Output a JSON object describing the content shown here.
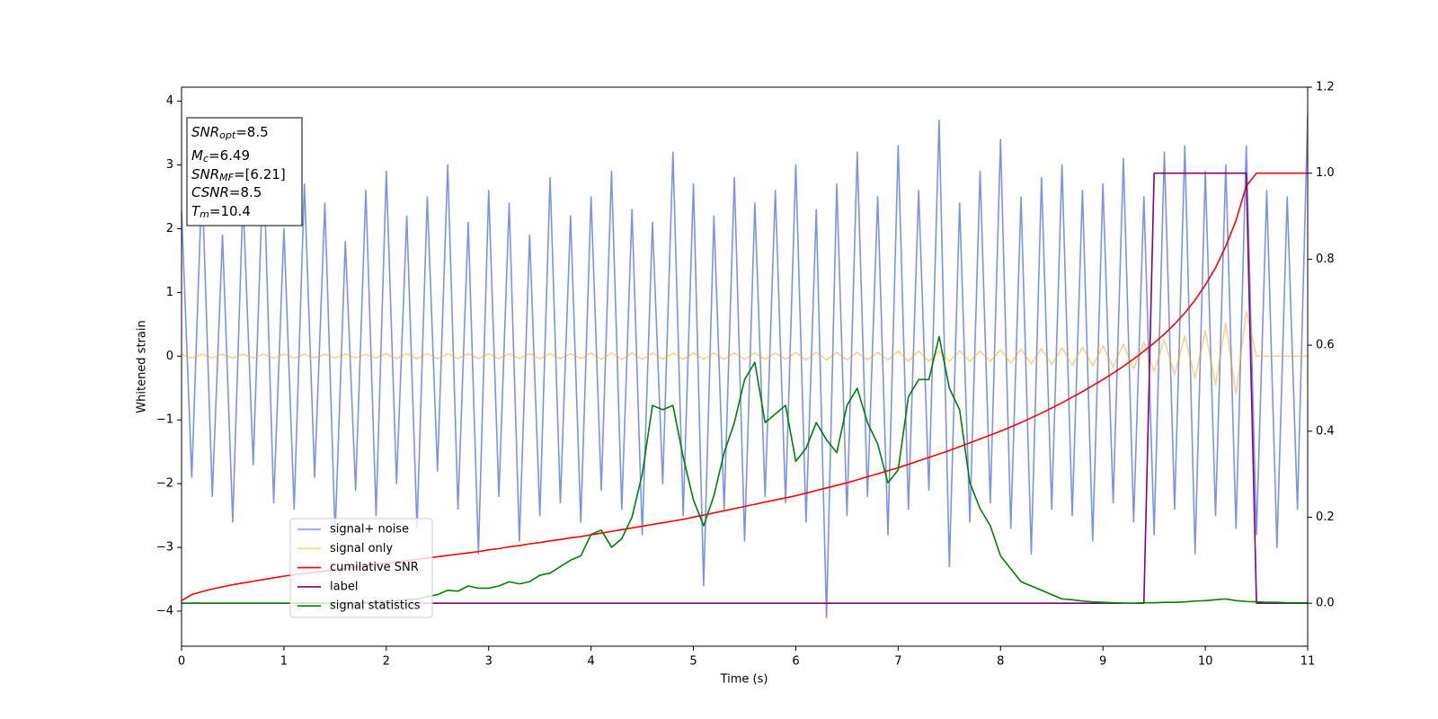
{
  "chart_data": {
    "type": "line",
    "xlabel": "Time (s)",
    "ylabel": "Whitened strain",
    "xlim": [
      0,
      11
    ],
    "ylim": [
      -4.55,
      4.22
    ],
    "y2lim": [
      -0.1,
      1.2
    ],
    "xticks": [
      0,
      1,
      2,
      3,
      4,
      5,
      6,
      7,
      8,
      9,
      10,
      11
    ],
    "yticks": [
      {
        "value": -4,
        "label": "−4"
      },
      {
        "value": -3,
        "label": "−3"
      },
      {
        "value": -2,
        "label": "−2"
      },
      {
        "value": -1,
        "label": "−1"
      },
      0,
      1,
      2,
      3,
      4
    ],
    "y2ticks": [
      {
        "value": 0,
        "label": "0.0"
      },
      0.2,
      0.4,
      0.6,
      0.8,
      {
        "value": 1,
        "label": "1.0"
      },
      1.2
    ],
    "legend": "lower left",
    "annotation": [
      {
        "base": "SNR",
        "sub": "opt",
        "rest": "=8.5"
      },
      {
        "base": "M",
        "sub": "c",
        "rest": "=6.49"
      },
      {
        "base": "SNR",
        "sub": "MF",
        "rest": "=[6.21]"
      },
      {
        "base": "CSNR",
        "rest": "=8.5"
      },
      {
        "base": "T",
        "sub": "m",
        "rest": "=10.4"
      }
    ],
    "x": [
      0,
      0.1,
      0.2,
      0.3,
      0.4,
      0.5,
      0.6,
      0.7,
      0.8,
      0.9,
      1,
      1.1,
      1.2,
      1.3,
      1.4,
      1.5,
      1.6,
      1.7,
      1.8,
      1.9,
      2,
      2.1,
      2.2,
      2.3,
      2.4,
      2.5,
      2.6,
      2.7,
      2.8,
      2.9,
      3,
      3.1,
      3.2,
      3.3,
      3.4,
      3.5,
      3.6,
      3.7,
      3.8,
      3.9,
      4,
      4.1,
      4.2,
      4.3,
      4.4,
      4.5,
      4.6,
      4.7,
      4.8,
      4.9,
      5,
      5.1,
      5.2,
      5.3,
      5.4,
      5.5,
      5.6,
      5.7,
      5.8,
      5.9,
      6,
      6.1,
      6.2,
      6.3,
      6.4,
      6.5,
      6.6,
      6.7,
      6.8,
      6.9,
      7,
      7.1,
      7.2,
      7.3,
      7.4,
      7.5,
      7.6,
      7.7,
      7.8,
      7.9,
      8,
      8.1,
      8.2,
      8.3,
      8.4,
      8.5,
      8.6,
      8.7,
      8.8,
      8.9,
      9,
      9.1,
      9.2,
      9.3,
      9.4,
      9.5,
      9.6,
      9.7,
      9.8,
      9.9,
      10,
      10.1,
      10.2,
      10.3,
      10.4,
      10.5,
      10.6,
      10.7,
      10.8,
      10.9,
      11
    ],
    "series": [
      {
        "name": "signal+ noise",
        "color": "#7a93e8",
        "values": [
          2.3,
          -1.9,
          2.8,
          -2.2,
          1.9,
          -2.6,
          2.5,
          -1.7,
          3.1,
          -2.3,
          2.0,
          -2.4,
          2.7,
          -1.9,
          2.4,
          -2.8,
          1.8,
          -2.1,
          2.6,
          -2.5,
          2.9,
          -2.0,
          2.2,
          -2.7,
          2.5,
          -1.8,
          3.0,
          -2.4,
          2.1,
          -3.1,
          2.6,
          -2.2,
          2.4,
          -2.9,
          1.9,
          -2.5,
          2.8,
          -2.3,
          2.2,
          -2.6,
          2.5,
          -2.1,
          2.9,
          -2.4,
          2.3,
          -2.8,
          2.1,
          -2.0,
          3.2,
          -2.5,
          2.7,
          -3.6,
          2.2,
          -2.4,
          2.8,
          -2.9,
          2.4,
          -2.2,
          2.6,
          -2.3,
          3.0,
          -2.6,
          2.3,
          -4.1,
          2.7,
          -2.5,
          3.2,
          -2.2,
          2.5,
          -2.8,
          3.3,
          -2.4,
          2.6,
          -2.1,
          3.7,
          -3.3,
          2.4,
          -2.6,
          2.9,
          -2.3,
          3.4,
          -2.7,
          2.5,
          -3.1,
          2.8,
          -2.4,
          3.0,
          -2.5,
          2.6,
          -2.9,
          2.7,
          -2.3,
          3.1,
          -2.6,
          2.5,
          -2.8,
          3.2,
          -2.4,
          3.3,
          -3.1,
          2.9,
          -2.5,
          3.0,
          -2.7,
          3.3,
          -2.8,
          2.6,
          -3.0,
          2.5,
          -2.4,
          3.8
        ]
      },
      {
        "name": "signal only",
        "color": "#ffa500",
        "values": [
          0.03,
          -0.03,
          0.03,
          -0.03,
          0.03,
          -0.03,
          0.03,
          -0.03,
          0.03,
          -0.03,
          0.03,
          -0.03,
          0.03,
          -0.03,
          0.03,
          -0.03,
          0.03,
          -0.03,
          0.03,
          -0.03,
          0.04,
          -0.04,
          0.04,
          -0.04,
          0.04,
          -0.04,
          0.04,
          -0.04,
          0.04,
          -0.04,
          0.04,
          -0.04,
          0.04,
          -0.04,
          0.04,
          -0.04,
          0.04,
          -0.04,
          0.04,
          -0.04,
          0.05,
          -0.05,
          0.05,
          -0.05,
          0.05,
          -0.05,
          0.05,
          -0.05,
          0.05,
          -0.05,
          0.05,
          -0.05,
          0.05,
          -0.05,
          0.05,
          -0.05,
          0.05,
          -0.05,
          0.05,
          -0.05,
          0.06,
          -0.06,
          0.06,
          -0.06,
          0.06,
          -0.06,
          0.06,
          -0.06,
          0.06,
          -0.06,
          0.08,
          -0.08,
          0.08,
          -0.08,
          0.08,
          -0.08,
          0.08,
          -0.08,
          0.08,
          -0.08,
          0.1,
          -0.11,
          0.11,
          -0.12,
          0.12,
          -0.13,
          0.13,
          -0.14,
          0.14,
          -0.15,
          0.16,
          -0.17,
          0.19,
          -0.2,
          0.22,
          -0.24,
          0.26,
          -0.29,
          0.32,
          -0.35,
          0.4,
          -0.45,
          0.52,
          -0.6,
          0.7,
          0,
          0,
          0,
          0,
          0,
          0
        ]
      },
      {
        "name": "cumilative SNR",
        "color": "#ff0000",
        "axis": "y2",
        "values": [
          0.006,
          0.02,
          0.027,
          0.033,
          0.038,
          0.043,
          0.047,
          0.051,
          0.055,
          0.059,
          0.063,
          0.066,
          0.069,
          0.072,
          0.075,
          0.078,
          0.081,
          0.084,
          0.087,
          0.09,
          0.093,
          0.096,
          0.099,
          0.102,
          0.105,
          0.108,
          0.111,
          0.114,
          0.117,
          0.12,
          0.124,
          0.127,
          0.131,
          0.134,
          0.138,
          0.141,
          0.145,
          0.148,
          0.152,
          0.155,
          0.159,
          0.163,
          0.167,
          0.171,
          0.175,
          0.179,
          0.183,
          0.187,
          0.191,
          0.195,
          0.2,
          0.205,
          0.21,
          0.215,
          0.22,
          0.225,
          0.23,
          0.235,
          0.24,
          0.245,
          0.25,
          0.256,
          0.262,
          0.268,
          0.274,
          0.28,
          0.287,
          0.294,
          0.301,
          0.308,
          0.315,
          0.323,
          0.331,
          0.339,
          0.347,
          0.355,
          0.364,
          0.373,
          0.382,
          0.391,
          0.4,
          0.41,
          0.42,
          0.431,
          0.442,
          0.454,
          0.466,
          0.479,
          0.492,
          0.506,
          0.52,
          0.535,
          0.551,
          0.568,
          0.586,
          0.605,
          0.626,
          0.649,
          0.675,
          0.705,
          0.74,
          0.78,
          0.83,
          0.89,
          0.97,
          1,
          1,
          1,
          1,
          1,
          1
        ]
      },
      {
        "name": "label",
        "color": "#800080",
        "axis": "y2",
        "values": [
          0,
          0,
          0,
          0,
          0,
          0,
          0,
          0,
          0,
          0,
          0,
          0,
          0,
          0,
          0,
          0,
          0,
          0,
          0,
          0,
          0,
          0,
          0,
          0,
          0,
          0,
          0,
          0,
          0,
          0,
          0,
          0,
          0,
          0,
          0,
          0,
          0,
          0,
          0,
          0,
          0,
          0,
          0,
          0,
          0,
          0,
          0,
          0,
          0,
          0,
          0,
          0,
          0,
          0,
          0,
          0,
          0,
          0,
          0,
          0,
          0,
          0,
          0,
          0,
          0,
          0,
          0,
          0,
          0,
          0,
          0,
          0,
          0,
          0,
          0,
          0,
          0,
          0,
          0,
          0,
          0,
          0,
          0,
          0,
          0,
          0,
          0,
          0,
          0,
          0,
          0,
          0,
          0,
          0,
          0,
          1,
          1,
          1,
          1,
          1,
          1,
          1,
          1,
          1,
          1,
          0,
          0,
          0,
          0,
          0,
          0
        ]
      },
      {
        "name": "signal statistics",
        "color": "#008000",
        "axis": "y2",
        "values": [
          0,
          0,
          0,
          0,
          0,
          0,
          0,
          0,
          0,
          0,
          0,
          0,
          0,
          0,
          0,
          0,
          0,
          0,
          0.002,
          0.003,
          0.005,
          0.006,
          0.008,
          0.01,
          0.015,
          0.02,
          0.03,
          0.028,
          0.04,
          0.035,
          0.035,
          0.04,
          0.05,
          0.045,
          0.05,
          0.065,
          0.07,
          0.085,
          0.1,
          0.11,
          0.16,
          0.17,
          0.13,
          0.15,
          0.2,
          0.3,
          0.46,
          0.45,
          0.46,
          0.34,
          0.24,
          0.18,
          0.25,
          0.35,
          0.42,
          0.52,
          0.56,
          0.42,
          0.44,
          0.46,
          0.33,
          0.36,
          0.42,
          0.38,
          0.35,
          0.46,
          0.5,
          0.42,
          0.37,
          0.28,
          0.31,
          0.48,
          0.52,
          0.52,
          0.62,
          0.5,
          0.45,
          0.28,
          0.22,
          0.18,
          0.11,
          0.08,
          0.05,
          0.04,
          0.03,
          0.02,
          0.01,
          0.008,
          0.005,
          0.003,
          0.002,
          0.001,
          0,
          0,
          0.001,
          0.001,
          0.002,
          0.002,
          0.003,
          0.005,
          0.006,
          0.008,
          0.01,
          0.006,
          0.004,
          0.003,
          0.002,
          0.002,
          0.001,
          0.001,
          0.001
        ]
      }
    ]
  }
}
